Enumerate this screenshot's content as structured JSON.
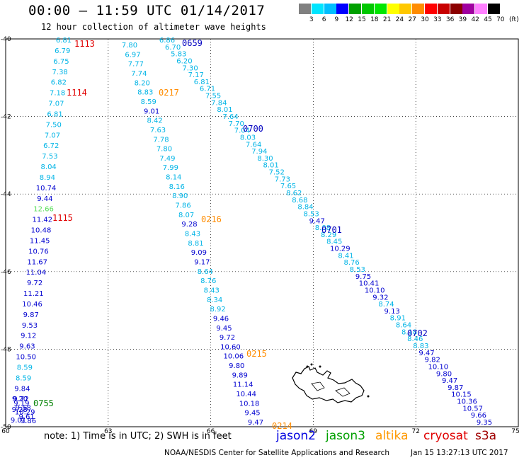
{
  "header": {
    "title": "00:00 – 11:59 UTC 01/14/2017",
    "subtitle": "12 hour collection of altimeter wave heights"
  },
  "color_scale": {
    "values": [
      "3",
      "6",
      "9",
      "12",
      "15",
      "18",
      "21",
      "24",
      "27",
      "30",
      "33",
      "36",
      "39",
      "42",
      "45",
      "70"
    ],
    "unit": "(ft)",
    "colors": [
      "#808080",
      "#00e5ff",
      "#00bfff",
      "#0000ff",
      "#00a000",
      "#00c800",
      "#00e600",
      "#ffff00",
      "#ffc800",
      "#ff8c00",
      "#ff0000",
      "#c80000",
      "#8b0000",
      "#a000a0",
      "#ff80ff",
      "#000000"
    ]
  },
  "map": {
    "lat_labels": [
      "-40",
      "-42",
      "-44",
      "-46",
      "-48",
      "-50"
    ],
    "lon_labels": [
      "60",
      "63",
      "66",
      "69",
      "72",
      "75"
    ],
    "lat_range": [
      -50,
      -40
    ],
    "lon_range": [
      60,
      75
    ]
  },
  "tracks": [
    {
      "id": "track1",
      "labels": [
        {
          "text": "1113",
          "color": "#e00000"
        },
        {
          "text": "1114",
          "color": "#e00000"
        },
        {
          "text": "1115",
          "color": "#e00000"
        }
      ],
      "values": [
        "6.81",
        "6.79",
        "6.75",
        "7.38",
        "6.82",
        "7.18",
        "7.07",
        "6.81",
        "7.50",
        "7.07",
        "6.72",
        "7.53",
        "8.04",
        "8.94",
        "10.74",
        "9.44",
        "12.66",
        "11.42",
        "10.48",
        "11.45",
        "10.76",
        "11.67",
        "11.04",
        "9.72",
        "11.21",
        "10.46",
        "9.87",
        "9.53",
        "9.12",
        "9.63",
        "10.50",
        "8.59",
        "8.59",
        "9.84",
        "9.72",
        "9.28",
        "9.01"
      ]
    },
    {
      "id": "track2",
      "labels": [
        {
          "text": "0217",
          "color": "#ff8c00"
        },
        {
          "text": "0216",
          "color": "#ff8c00"
        },
        {
          "text": "0215",
          "color": "#ff8c00"
        },
        {
          "text": "0214",
          "color": "#ff8c00"
        }
      ],
      "values": [
        "7.80",
        "6.97",
        "7.77",
        "7.74",
        "8.20",
        "8.83",
        "8.59",
        "9.01",
        "8.42",
        "7.63",
        "7.78",
        "7.80",
        "7.49",
        "7.99",
        "8.14",
        "8.16",
        "8.90",
        "7.86",
        "8.07",
        "9.28",
        "8.43",
        "8.81",
        "9.09",
        "9.17",
        "8.64",
        "8.76",
        "8.43",
        "8.34",
        "8.92",
        "9.46",
        "9.45",
        "9.72",
        "10.60",
        "10.06",
        "9.80",
        "9.89",
        "11.14",
        "10.44",
        "10.18",
        "9.45",
        "9.47"
      ]
    },
    {
      "id": "track3",
      "labels": [
        {
          "text": "0659",
          "color": "#0000c0"
        },
        {
          "text": "0700",
          "color": "#0000c0"
        },
        {
          "text": "0701",
          "color": "#0000c0"
        },
        {
          "text": "0702",
          "color": "#0000c0"
        }
      ],
      "values": [
        "6.86",
        "6.70",
        "5.83",
        "6.20",
        "7.30",
        "7.17",
        "6.81",
        "6.71",
        "7.55",
        "7.84",
        "8.01",
        "7.64",
        "7.70",
        "7.04",
        "8.03",
        "7.64",
        "7.94",
        "8.30",
        "8.01",
        "7.52",
        "7.73",
        "7.65",
        "8.62",
        "8.68",
        "8.84",
        "8.53",
        "9.47",
        "8.08",
        "8.29",
        "8.45",
        "10.29",
        "8.41",
        "8.76",
        "8.53",
        "9.75",
        "10.41",
        "10.10",
        "9.32",
        "8.74",
        "9.13",
        "8.91",
        "8.64",
        "8.18",
        "8.46",
        "8.83",
        "9.47",
        "9.82",
        "10.10",
        "9.80",
        "9.47",
        "9.87",
        "10.15",
        "10.36",
        "10.57",
        "9.66",
        "9.35"
      ]
    },
    {
      "id": "track4",
      "labels": [
        {
          "text": "0755",
          "color": "#008000"
        }
      ],
      "values": [
        "9.20",
        "9.19",
        "9.58",
        "10.29",
        "9.61",
        "9.86"
      ]
    }
  ],
  "footer": {
    "note": "note: 1) Time is in UTC; 2) SWH is in feet",
    "satellites": [
      {
        "name": "jason2",
        "color": "#0000e0"
      },
      {
        "name": "jason3",
        "color": "#00a000"
      },
      {
        "name": "altika",
        "color": "#ff9900"
      },
      {
        "name": "cryosat",
        "color": "#e00000"
      },
      {
        "name": "s3a",
        "color": "#a00000"
      }
    ],
    "credit": "NOAA/NESDIS Center for Satellite Applications and Research",
    "generated": "Jan 15 13:27:13 UTC 2017"
  }
}
